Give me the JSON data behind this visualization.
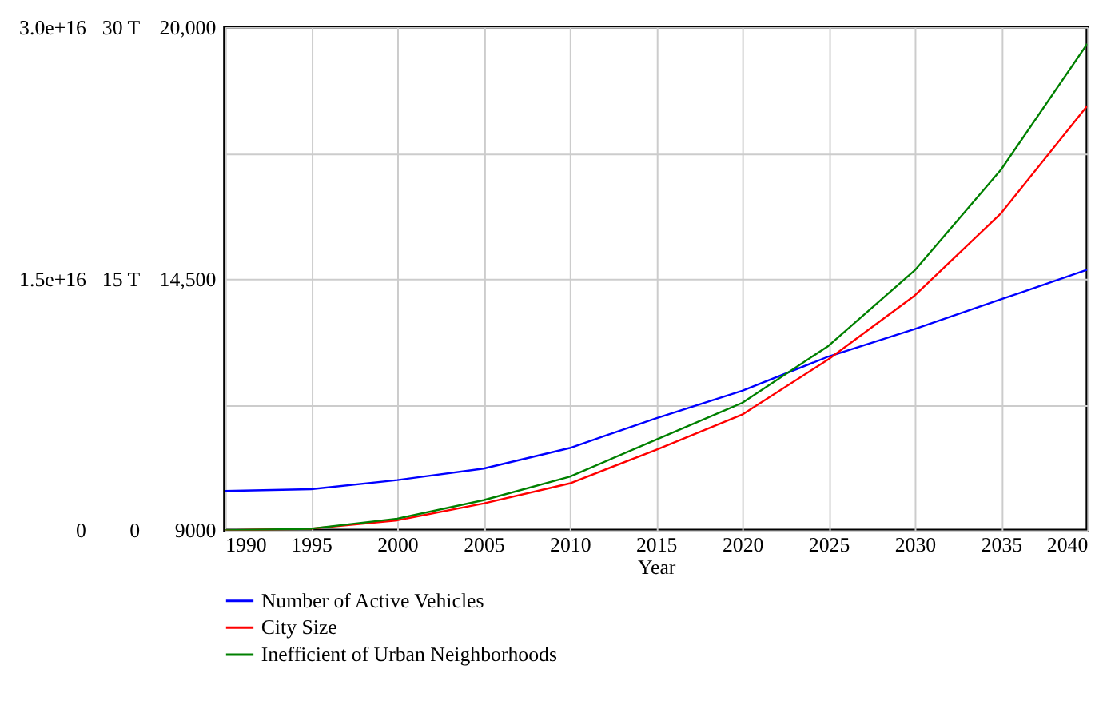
{
  "chart_data": {
    "type": "line",
    "xlabel": "Year",
    "x": [
      1990,
      1995,
      2000,
      2005,
      2010,
      2015,
      2020,
      2025,
      2030,
      2035,
      2040
    ],
    "xlim": [
      1990,
      2040
    ],
    "xticks": [
      1990,
      1995,
      2000,
      2005,
      2010,
      2015,
      2020,
      2025,
      2030,
      2035,
      2040
    ],
    "ylim": [
      9000,
      20000
    ],
    "yticks": [
      {
        "value": 9000,
        "label": "9000"
      },
      {
        "value": 11750,
        "label": null
      },
      {
        "value": 14500,
        "label": "14,500"
      },
      {
        "value": 17250,
        "label": null
      },
      {
        "value": 20000,
        "label": "20,000"
      }
    ],
    "y2lim": [
      0,
      30000000000000
    ],
    "y2ticks": [
      {
        "value": 0,
        "label": "0"
      },
      {
        "value": 15000000000000,
        "label": "15 T"
      },
      {
        "value": 30000000000000,
        "label": "30 T"
      }
    ],
    "y3lim": [
      0,
      30000000000000000
    ],
    "y3ticks": [
      {
        "value": 0,
        "label": "0"
      },
      {
        "value": 15000000000000000,
        "label": "1.5e+16"
      },
      {
        "value": 30000000000000000,
        "label": "3.0e+16"
      }
    ],
    "grid": true,
    "legend": "bottom",
    "line_style": "solid",
    "series": [
      {
        "name": "Number of Active Vehicles",
        "color": "#0000ff",
        "values": [
          9860,
          9900,
          10100,
          10350,
          10800,
          11450,
          12050,
          12800,
          13400,
          14050,
          14700
        ]
      },
      {
        "name": "City Size",
        "color": "#ff0000",
        "axis": "y2",
        "values": [
          0,
          100000000000,
          600000000000,
          1600000000000,
          2800000000000,
          4800000000000,
          6900000000000,
          10200000000000,
          14000000000000,
          18900000000000,
          25300000000000
        ]
      },
      {
        "name": "Inefficient of Urban Neighborhoods",
        "color": "#008000",
        "axis": "y3",
        "values": [
          0,
          100000000000000,
          700000000000000,
          1800000000000000,
          3200000000000000,
          5400000000000000,
          7600000000000000,
          11000000000000000,
          15500000000000000,
          21500000000000000,
          29000000000000000
        ]
      }
    ]
  }
}
